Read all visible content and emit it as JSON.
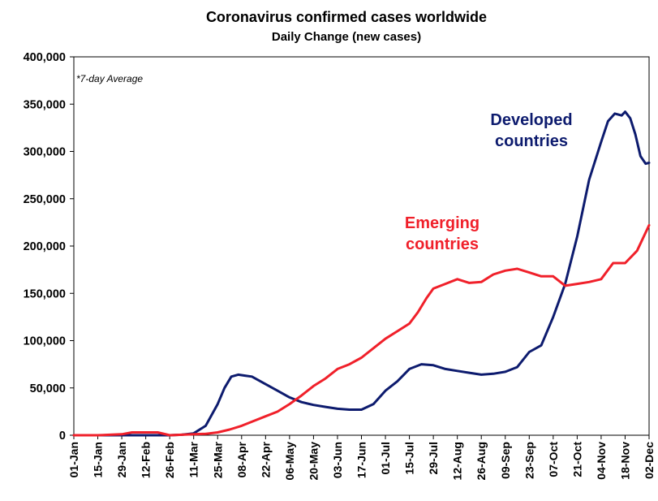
{
  "chart_data": {
    "type": "line",
    "title": "Coronavirus confirmed cases worldwide",
    "subtitle": "Daily Change (new cases)",
    "note": "*7-day Average",
    "xlabel": "",
    "ylabel": "",
    "ylim": [
      0,
      400000
    ],
    "yticks": [
      "0",
      "50,000",
      "100,000",
      "150,000",
      "200,000",
      "250,000",
      "300,000",
      "350,000",
      "400,000"
    ],
    "x_ticks": [
      "01-Jan",
      "15-Jan",
      "29-Jan",
      "12-Feb",
      "26-Feb",
      "11-Mar",
      "25-Mar",
      "08-Apr",
      "22-Apr",
      "06-May",
      "20-May",
      "03-Jun",
      "17-Jun",
      "01-Jul",
      "15-Jul",
      "29-Jul",
      "12-Aug",
      "26-Aug",
      "09-Sep",
      "23-Sep",
      "07-Oct",
      "21-Oct",
      "04-Nov",
      "18-Nov",
      "02-Dec"
    ],
    "grid": false,
    "series": [
      {
        "name": "Developed countries",
        "label_lines": [
          "Developed",
          "countries"
        ],
        "color": "#0d1b6e",
        "x": [
          "01-Jan",
          "15-Jan",
          "29-Jan",
          "12-Feb",
          "26-Feb",
          "04-Mar",
          "11-Mar",
          "18-Mar",
          "25-Mar",
          "29-Mar",
          "02-Apr",
          "06-Apr",
          "10-Apr",
          "14-Apr",
          "18-Apr",
          "22-Apr",
          "29-Apr",
          "06-May",
          "13-May",
          "20-May",
          "27-May",
          "03-Jun",
          "10-Jun",
          "17-Jun",
          "24-Jun",
          "01-Jul",
          "08-Jul",
          "15-Jul",
          "22-Jul",
          "29-Jul",
          "05-Aug",
          "12-Aug",
          "19-Aug",
          "26-Aug",
          "02-Sep",
          "09-Sep",
          "16-Sep",
          "23-Sep",
          "30-Sep",
          "07-Oct",
          "14-Oct",
          "21-Oct",
          "28-Oct",
          "04-Nov",
          "08-Nov",
          "12-Nov",
          "16-Nov",
          "18-Nov",
          "21-Nov",
          "24-Nov",
          "27-Nov",
          "30-Nov",
          "02-Dec"
        ],
        "values": [
          0,
          0,
          0,
          0,
          0,
          500,
          2000,
          10000,
          33000,
          50000,
          62000,
          64000,
          63000,
          62000,
          58000,
          54000,
          47000,
          40000,
          35000,
          32000,
          30000,
          28000,
          27000,
          27000,
          33000,
          47000,
          57000,
          70000,
          75000,
          74000,
          70000,
          68000,
          66000,
          64000,
          65000,
          67000,
          72000,
          88000,
          95000,
          125000,
          160000,
          210000,
          270000,
          310000,
          332000,
          340000,
          338000,
          342000,
          335000,
          318000,
          295000,
          287000,
          288000
        ]
      },
      {
        "name": "Emerging countries",
        "label_lines": [
          "Emerging",
          "countries"
        ],
        "color": "#f0202a",
        "x": [
          "01-Jan",
          "15-Jan",
          "29-Jan",
          "04-Feb",
          "12-Feb",
          "19-Feb",
          "26-Feb",
          "04-Mar",
          "11-Mar",
          "18-Mar",
          "25-Mar",
          "01-Apr",
          "08-Apr",
          "15-Apr",
          "22-Apr",
          "29-Apr",
          "06-May",
          "13-May",
          "20-May",
          "27-May",
          "03-Jun",
          "10-Jun",
          "17-Jun",
          "24-Jun",
          "01-Jul",
          "08-Jul",
          "15-Jul",
          "20-Jul",
          "25-Jul",
          "29-Jul",
          "05-Aug",
          "12-Aug",
          "19-Aug",
          "26-Aug",
          "02-Sep",
          "09-Sep",
          "16-Sep",
          "23-Sep",
          "30-Sep",
          "07-Oct",
          "14-Oct",
          "21-Oct",
          "28-Oct",
          "04-Nov",
          "11-Nov",
          "18-Nov",
          "25-Nov",
          "02-Dec"
        ],
        "values": [
          0,
          0,
          1000,
          3000,
          3000,
          3000,
          0,
          500,
          1000,
          1500,
          3000,
          6000,
          10000,
          15000,
          20000,
          25000,
          33000,
          42000,
          52000,
          60000,
          70000,
          75000,
          82000,
          92000,
          102000,
          110000,
          118000,
          130000,
          145000,
          155000,
          160000,
          165000,
          161000,
          162000,
          170000,
          174000,
          176000,
          172000,
          168000,
          168000,
          158000,
          160000,
          162000,
          165000,
          182000,
          182000,
          195000,
          222000
        ]
      }
    ]
  }
}
